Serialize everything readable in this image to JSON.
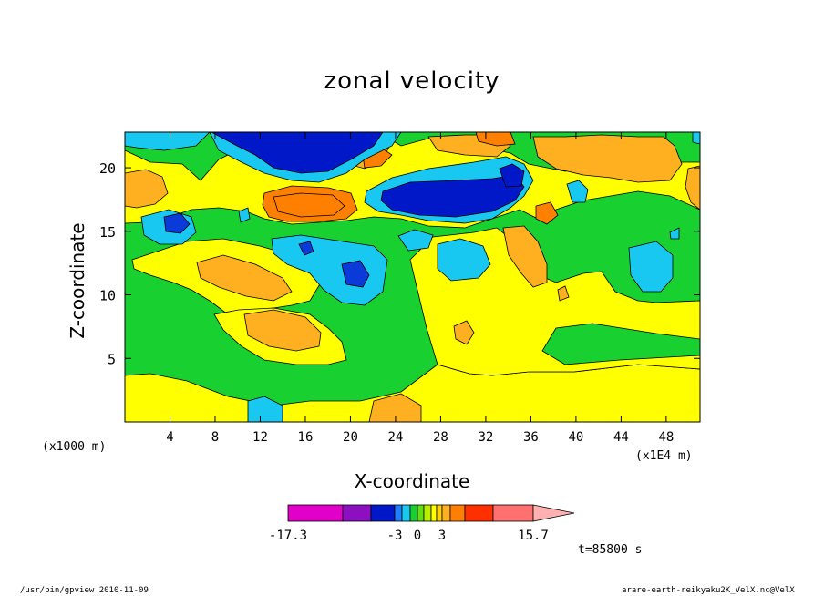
{
  "chart_data": {
    "type": "heatmap",
    "title": "zonal velocity",
    "xlabel": "X-coordinate",
    "ylabel": "Z-coordinate",
    "x_unit_left": "(x1000 m)",
    "x_unit_right": "(x1E4 m)",
    "xlim": [
      0,
      51
    ],
    "ylim": [
      0,
      22.8
    ],
    "x_ticks": [
      "4",
      "8",
      "12",
      "16",
      "20",
      "24",
      "28",
      "32",
      "36",
      "40",
      "44",
      "48"
    ],
    "y_ticks": [
      "5",
      "10",
      "15",
      "20"
    ],
    "colorbar": {
      "tick_labels": [
        "-17.3",
        "-3",
        "0",
        "3",
        "15.7"
      ],
      "colors": [
        "#e000c8",
        "#8c10c0",
        "#0018c8",
        "#0a3ad8",
        "#1e80ff",
        "#19c8f0",
        "#18d030",
        "#60e010",
        "#b8f000",
        "#ffff00",
        "#ffd010",
        "#ffb020",
        "#ff8000",
        "#ff3000",
        "#ff1010",
        "#ff7070",
        "#ffb0b0"
      ]
    },
    "time_label": "t=85800 s",
    "grid": false
  },
  "footer": {
    "left": "/usr/bin/gpview   2010-11-09",
    "right": "arare-earth-reikyaku2K_VelX.nc@VelX"
  }
}
